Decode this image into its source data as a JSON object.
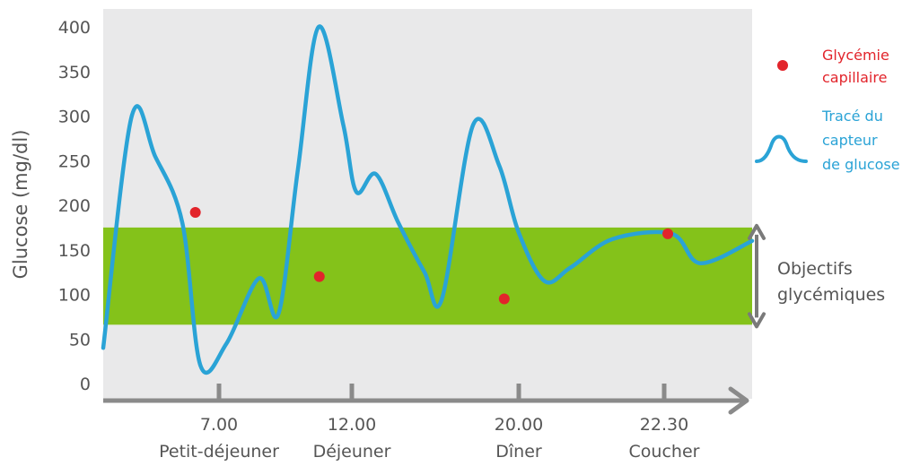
{
  "chart_data": {
    "type": "line",
    "title": "",
    "ylabel": "Glucose (mg/dl)",
    "ylim": [
      0,
      400
    ],
    "yticks": [
      0,
      50,
      100,
      150,
      200,
      250,
      300,
      350,
      400
    ],
    "x_axis_ticks": [
      {
        "time": "7.00",
        "event": "Petit-déjeuner"
      },
      {
        "time": "12.00",
        "event": "Déjeuner"
      },
      {
        "time": "20.00",
        "event": "Dîner"
      },
      {
        "time": "22.30",
        "event": "Coucher"
      }
    ],
    "target_range": {
      "label_line1": "Objectifs",
      "label_line2": "glycémiques",
      "min": 66,
      "max": 175,
      "color": "#84c21a"
    },
    "sensor_series": {
      "name": "Tracé du capteur de glucose",
      "color": "#2aa3d6",
      "points": [
        [
          0.0,
          40
        ],
        [
          0.044,
          300
        ],
        [
          0.08,
          255
        ],
        [
          0.122,
          180
        ],
        [
          0.15,
          20
        ],
        [
          0.19,
          45
        ],
        [
          0.24,
          118
        ],
        [
          0.27,
          78
        ],
        [
          0.3,
          240
        ],
        [
          0.332,
          400
        ],
        [
          0.37,
          290
        ],
        [
          0.39,
          215
        ],
        [
          0.42,
          235
        ],
        [
          0.455,
          180
        ],
        [
          0.495,
          125
        ],
        [
          0.522,
          95
        ],
        [
          0.57,
          290
        ],
        [
          0.61,
          245
        ],
        [
          0.64,
          170
        ],
        [
          0.68,
          115
        ],
        [
          0.72,
          130
        ],
        [
          0.785,
          162
        ],
        [
          0.876,
          168
        ],
        [
          0.92,
          135
        ],
        [
          1.0,
          160
        ]
      ]
    },
    "capillary_points": {
      "name": "Glycémie capillaire",
      "color": "#e2242b",
      "points": [
        [
          0.142,
          192
        ],
        [
          0.333,
          120
        ],
        [
          0.618,
          95
        ],
        [
          0.87,
          168
        ]
      ]
    },
    "background_color": "#e9e9ea"
  },
  "legend": {
    "capillary_line1": "Glycémie",
    "capillary_line2": "capillaire",
    "sensor_line1": "Tracé du",
    "sensor_line2": "capteur",
    "sensor_line3": "de glucose"
  }
}
